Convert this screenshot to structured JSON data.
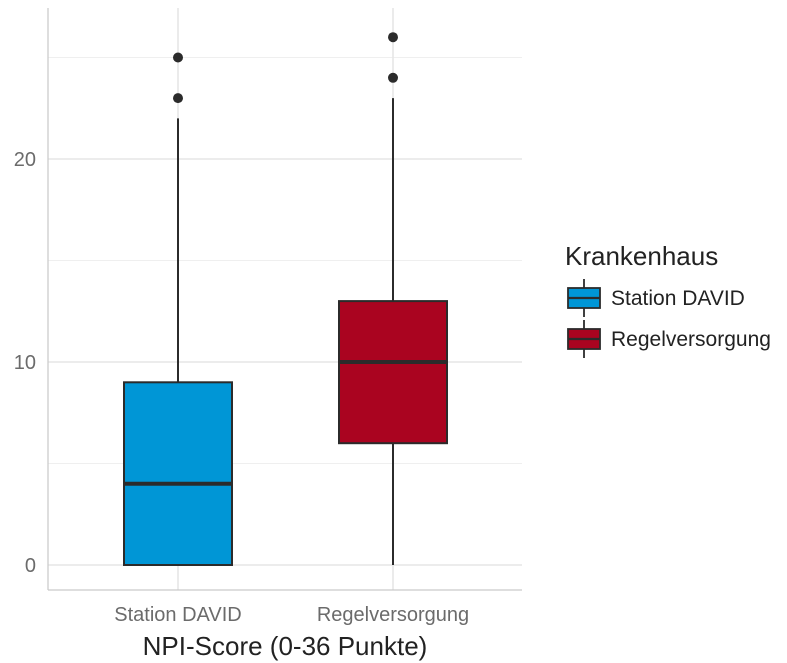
{
  "chart_data": {
    "type": "boxplot",
    "title": "",
    "xlabel": "NPI-Score (0-36 Punkte)",
    "ylabel": "",
    "categories": [
      "Station DAVID",
      "Regelversorgung"
    ],
    "ylim": [
      -1.2,
      27.2
    ],
    "y_ticks": [
      0,
      10,
      20
    ],
    "grid": true,
    "legend": {
      "title": "Krankenhaus",
      "position": "right",
      "entries": [
        "Station DAVID",
        "Regelversorgung"
      ]
    },
    "series": [
      {
        "name": "Station DAVID",
        "color": "#0096d6",
        "min": 0,
        "q1": 0,
        "median": 4,
        "q3": 9,
        "max": 22,
        "outliers": [
          23,
          25
        ]
      },
      {
        "name": "Regelversorgung",
        "color": "#aa0420",
        "min": 0,
        "q1": 6,
        "median": 10,
        "q3": 13,
        "max": 23,
        "outliers": [
          24,
          26
        ]
      }
    ]
  }
}
